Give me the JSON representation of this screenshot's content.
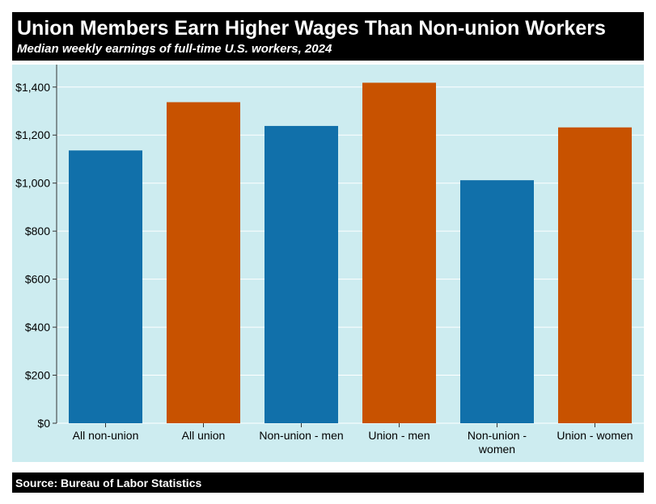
{
  "header": {
    "title": "Union Members Earn Higher Wages Than Non-union Workers",
    "subtitle": "Median weekly earnings of full-time U.S. workers, 2024"
  },
  "footer": {
    "source": "Source: Bureau of Labor Statistics"
  },
  "colors": {
    "non_union": "#1170aa",
    "union": "#c85200",
    "plot_background": "#cdecf0",
    "gridline": "#ffffff",
    "header_background": "#000000"
  },
  "chart_data": {
    "type": "bar",
    "title": "Union Members Earn Higher Wages Than Non-union Workers",
    "subtitle": "Median weekly earnings of full-time U.S. workers, 2024",
    "categories": [
      [
        "All non-union"
      ],
      [
        "All union"
      ],
      [
        "Non-union - men"
      ],
      [
        "Union - men"
      ],
      [
        "Non-union -",
        "women"
      ],
      [
        "Union - women"
      ]
    ],
    "values": [
      1136,
      1337,
      1238,
      1418,
      1012,
      1232
    ],
    "bar_colors": [
      "#1170aa",
      "#c85200",
      "#1170aa",
      "#c85200",
      "#1170aa",
      "#c85200"
    ],
    "yticks": [
      0,
      200,
      400,
      600,
      800,
      1000,
      1200,
      1400
    ],
    "ytick_labels": [
      "$0",
      "$200",
      "$400",
      "$600",
      "$800",
      "$1,000",
      "$1,200",
      "$1,400"
    ],
    "ylim": [
      0,
      1480
    ],
    "xlabel": "",
    "ylabel": "",
    "grid": true,
    "legend": "none"
  }
}
